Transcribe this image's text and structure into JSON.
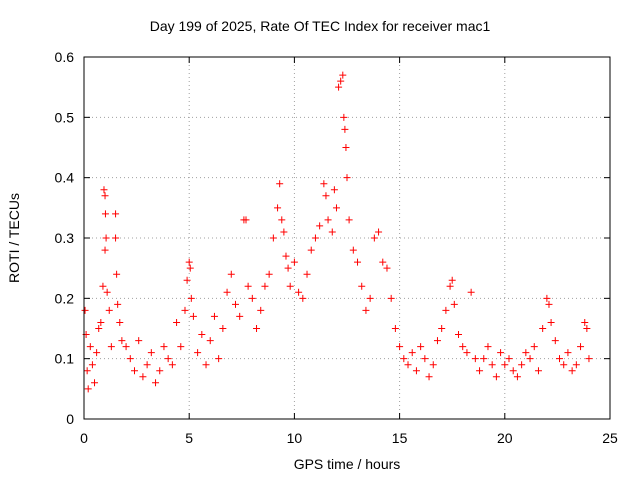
{
  "chart_data": {
    "type": "scatter",
    "title": "Day 199 of 2025, Rate Of TEC Index for receiver mac1",
    "xlabel": "GPS time / hours",
    "ylabel": "ROTI / TECUs",
    "xlim": [
      0,
      25
    ],
    "ylim": [
      0,
      0.6
    ],
    "xticks": [
      0,
      5,
      10,
      15,
      20,
      25
    ],
    "yticks": [
      0,
      0.1,
      0.2,
      0.3,
      0.4,
      0.5,
      0.6
    ],
    "ytick_labels": [
      "0",
      "0.1",
      "0.2",
      "0.3",
      "0.4",
      "0.5",
      "0.6"
    ],
    "grid": true,
    "marker": "+",
    "color": "#ff0000",
    "series": [
      {
        "points": [
          [
            0.05,
            0.18
          ],
          [
            0.1,
            0.14
          ],
          [
            0.15,
            0.08
          ],
          [
            0.2,
            0.05
          ],
          [
            0.3,
            0.12
          ],
          [
            0.4,
            0.09
          ],
          [
            0.5,
            0.06
          ],
          [
            0.6,
            0.11
          ],
          [
            0.7,
            0.15
          ],
          [
            0.8,
            0.16
          ],
          [
            0.9,
            0.22
          ],
          [
            0.95,
            0.38
          ],
          [
            1.0,
            0.37
          ],
          [
            1.02,
            0.34
          ],
          [
            1.05,
            0.3
          ],
          [
            1.0,
            0.28
          ],
          [
            1.1,
            0.21
          ],
          [
            1.2,
            0.18
          ],
          [
            1.3,
            0.12
          ],
          [
            1.5,
            0.34
          ],
          [
            1.5,
            0.3
          ],
          [
            1.55,
            0.24
          ],
          [
            1.6,
            0.19
          ],
          [
            1.7,
            0.16
          ],
          [
            1.8,
            0.13
          ],
          [
            2.0,
            0.12
          ],
          [
            2.2,
            0.1
          ],
          [
            2.4,
            0.08
          ],
          [
            2.6,
            0.13
          ],
          [
            2.8,
            0.07
          ],
          [
            3.0,
            0.09
          ],
          [
            3.2,
            0.11
          ],
          [
            3.4,
            0.06
          ],
          [
            3.6,
            0.08
          ],
          [
            3.8,
            0.12
          ],
          [
            4.0,
            0.1
          ],
          [
            4.2,
            0.09
          ],
          [
            4.4,
            0.16
          ],
          [
            4.6,
            0.12
          ],
          [
            4.8,
            0.18
          ],
          [
            4.9,
            0.23
          ],
          [
            5.0,
            0.26
          ],
          [
            5.05,
            0.25
          ],
          [
            5.1,
            0.2
          ],
          [
            5.2,
            0.17
          ],
          [
            5.4,
            0.11
          ],
          [
            5.6,
            0.14
          ],
          [
            5.8,
            0.09
          ],
          [
            6.0,
            0.13
          ],
          [
            6.2,
            0.17
          ],
          [
            6.4,
            0.1
          ],
          [
            6.6,
            0.15
          ],
          [
            6.8,
            0.21
          ],
          [
            7.0,
            0.24
          ],
          [
            7.2,
            0.19
          ],
          [
            7.4,
            0.17
          ],
          [
            7.6,
            0.33
          ],
          [
            7.7,
            0.33
          ],
          [
            7.8,
            0.22
          ],
          [
            8.0,
            0.2
          ],
          [
            8.2,
            0.15
          ],
          [
            8.4,
            0.18
          ],
          [
            8.6,
            0.22
          ],
          [
            8.8,
            0.24
          ],
          [
            9.0,
            0.3
          ],
          [
            9.2,
            0.35
          ],
          [
            9.3,
            0.39
          ],
          [
            9.4,
            0.33
          ],
          [
            9.5,
            0.31
          ],
          [
            9.6,
            0.27
          ],
          [
            9.7,
            0.25
          ],
          [
            9.8,
            0.22
          ],
          [
            10.0,
            0.26
          ],
          [
            10.2,
            0.21
          ],
          [
            10.4,
            0.2
          ],
          [
            10.6,
            0.24
          ],
          [
            10.8,
            0.28
          ],
          [
            11.0,
            0.3
          ],
          [
            11.2,
            0.32
          ],
          [
            11.4,
            0.39
          ],
          [
            11.5,
            0.37
          ],
          [
            11.6,
            0.33
          ],
          [
            11.8,
            0.31
          ],
          [
            11.9,
            0.38
          ],
          [
            12.0,
            0.35
          ],
          [
            12.1,
            0.55
          ],
          [
            12.2,
            0.56
          ],
          [
            12.3,
            0.57
          ],
          [
            12.35,
            0.5
          ],
          [
            12.4,
            0.48
          ],
          [
            12.45,
            0.45
          ],
          [
            12.5,
            0.4
          ],
          [
            12.6,
            0.33
          ],
          [
            12.8,
            0.28
          ],
          [
            13.0,
            0.26
          ],
          [
            13.2,
            0.22
          ],
          [
            13.4,
            0.18
          ],
          [
            13.6,
            0.2
          ],
          [
            13.8,
            0.3
          ],
          [
            14.0,
            0.31
          ],
          [
            14.2,
            0.26
          ],
          [
            14.4,
            0.25
          ],
          [
            14.6,
            0.2
          ],
          [
            14.8,
            0.15
          ],
          [
            15.0,
            0.12
          ],
          [
            15.2,
            0.1
          ],
          [
            15.4,
            0.09
          ],
          [
            15.6,
            0.11
          ],
          [
            15.8,
            0.08
          ],
          [
            16.0,
            0.12
          ],
          [
            16.2,
            0.1
          ],
          [
            16.4,
            0.07
          ],
          [
            16.6,
            0.09
          ],
          [
            16.8,
            0.13
          ],
          [
            17.0,
            0.15
          ],
          [
            17.2,
            0.18
          ],
          [
            17.4,
            0.22
          ],
          [
            17.5,
            0.23
          ],
          [
            17.6,
            0.19
          ],
          [
            17.8,
            0.14
          ],
          [
            18.0,
            0.12
          ],
          [
            18.2,
            0.11
          ],
          [
            18.4,
            0.21
          ],
          [
            18.6,
            0.1
          ],
          [
            18.8,
            0.08
          ],
          [
            19.0,
            0.1
          ],
          [
            19.2,
            0.12
          ],
          [
            19.4,
            0.09
          ],
          [
            19.6,
            0.07
          ],
          [
            19.8,
            0.11
          ],
          [
            20.0,
            0.09
          ],
          [
            20.2,
            0.1
          ],
          [
            20.4,
            0.08
          ],
          [
            20.6,
            0.07
          ],
          [
            20.8,
            0.09
          ],
          [
            21.0,
            0.11
          ],
          [
            21.2,
            0.1
          ],
          [
            21.4,
            0.12
          ],
          [
            21.6,
            0.08
          ],
          [
            21.8,
            0.15
          ],
          [
            22.0,
            0.2
          ],
          [
            22.1,
            0.19
          ],
          [
            22.2,
            0.16
          ],
          [
            22.4,
            0.13
          ],
          [
            22.6,
            0.1
          ],
          [
            22.8,
            0.09
          ],
          [
            23.0,
            0.11
          ],
          [
            23.2,
            0.08
          ],
          [
            23.4,
            0.09
          ],
          [
            23.6,
            0.12
          ],
          [
            23.8,
            0.16
          ],
          [
            23.9,
            0.15
          ],
          [
            24.0,
            0.1
          ]
        ]
      }
    ]
  }
}
